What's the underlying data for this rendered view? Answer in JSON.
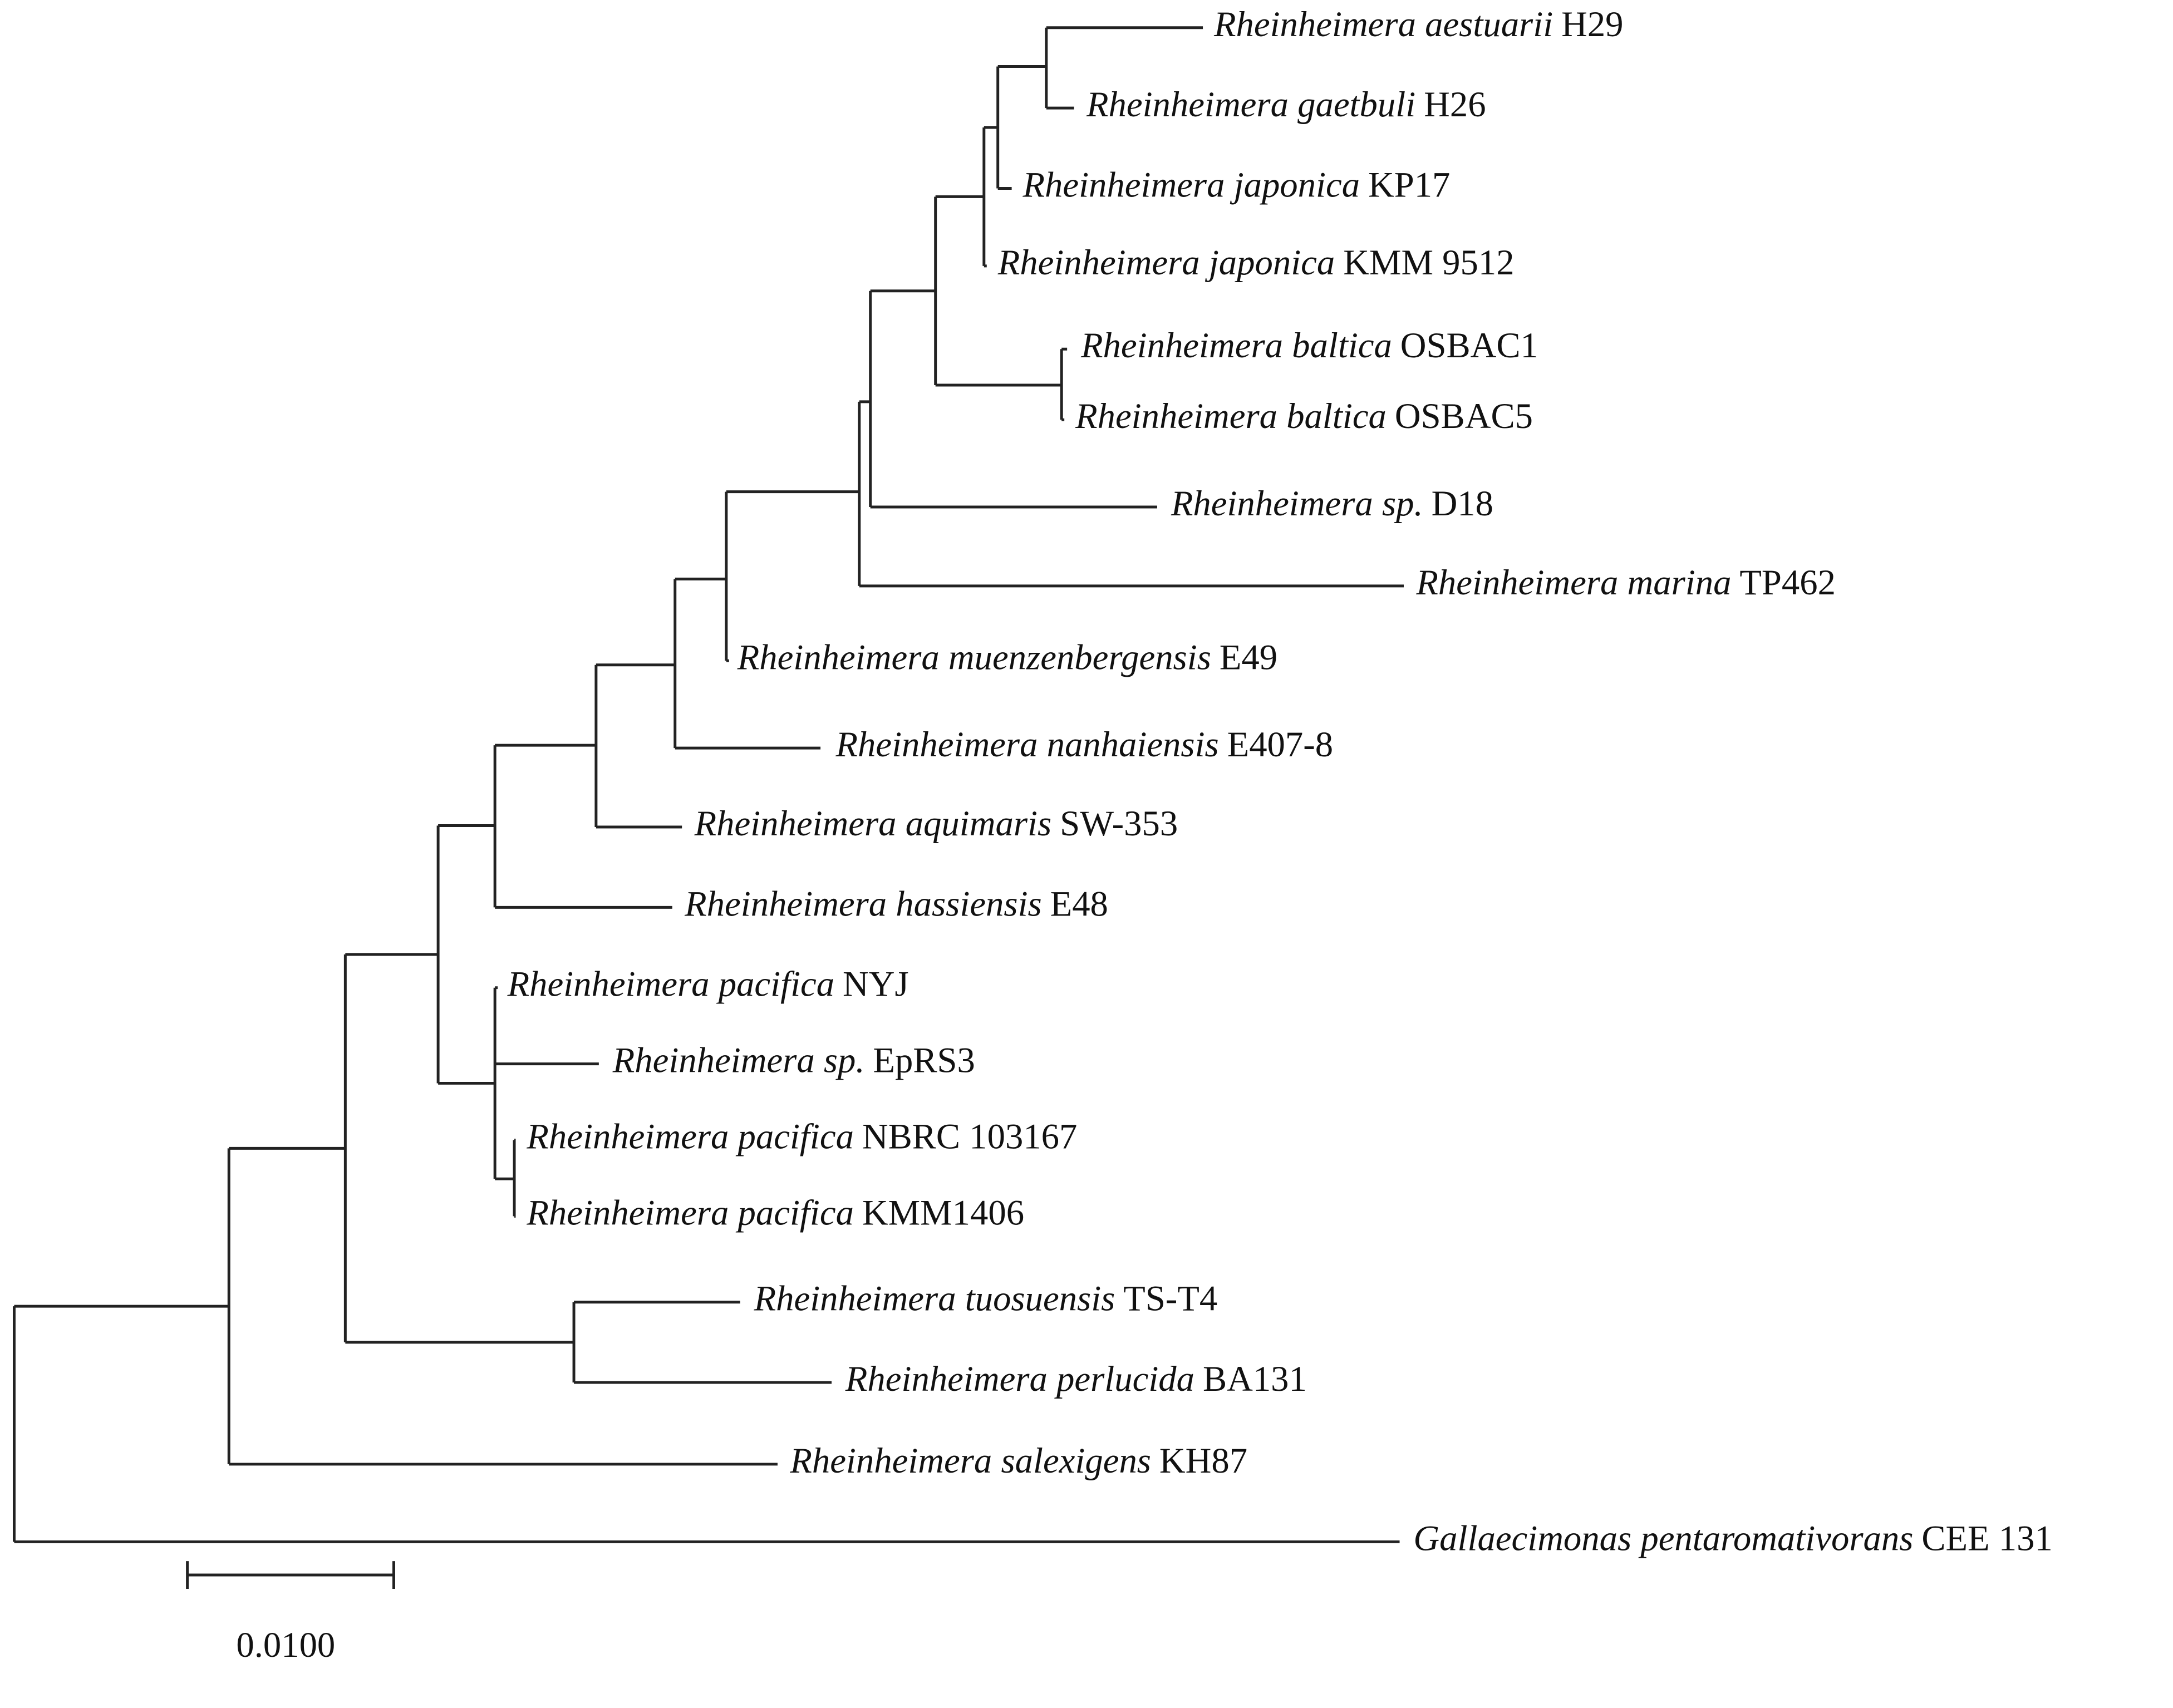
{
  "leaves": [
    {
      "species": "Rheinheimera aestuarii",
      "strain": "H29"
    },
    {
      "species": "Rheinheimera gaetbuli",
      "strain": "H26"
    },
    {
      "species": "Rheinheimera japonica",
      "strain": "KP17"
    },
    {
      "species": "Rheinheimera japonica",
      "strain": "KMM 9512"
    },
    {
      "species": "Rheinheimera baltica",
      "strain": "OSBAC1"
    },
    {
      "species": "Rheinheimera baltica",
      "strain": "OSBAC5"
    },
    {
      "species": "Rheinheimera sp.",
      "strain": "D18"
    },
    {
      "species": "Rheinheimera marina",
      "strain": "TP462"
    },
    {
      "species": "Rheinheimera muenzenbergensis",
      "strain": "E49"
    },
    {
      "species": "Rheinheimera nanhaiensis",
      "strain": "E407-8"
    },
    {
      "species": "Rheinheimera aquimaris",
      "strain": "SW-353"
    },
    {
      "species": "Rheinheimera hassiensis",
      "strain": "E48"
    },
    {
      "species": "Rheinheimera pacifica",
      "strain": "NYJ"
    },
    {
      "species": "Rheinheimera sp.",
      "strain": "EpRS3"
    },
    {
      "species": "Rheinheimera pacifica",
      "strain": "NBRC 103167"
    },
    {
      "species": "Rheinheimera pacifica",
      "strain": "KMM1406"
    },
    {
      "species": "Rheinheimera tuosuensis",
      "strain": "TS-T4"
    },
    {
      "species": "Rheinheimera perlucida",
      "strain": "BA131"
    },
    {
      "species": "Rheinheimera salexigens",
      "strain": "KH87"
    },
    {
      "species": "Gallaecimonas pentaromativorans",
      "strain": "CEE 131"
    }
  ],
  "scale_bar": {
    "label": "0.0100"
  }
}
